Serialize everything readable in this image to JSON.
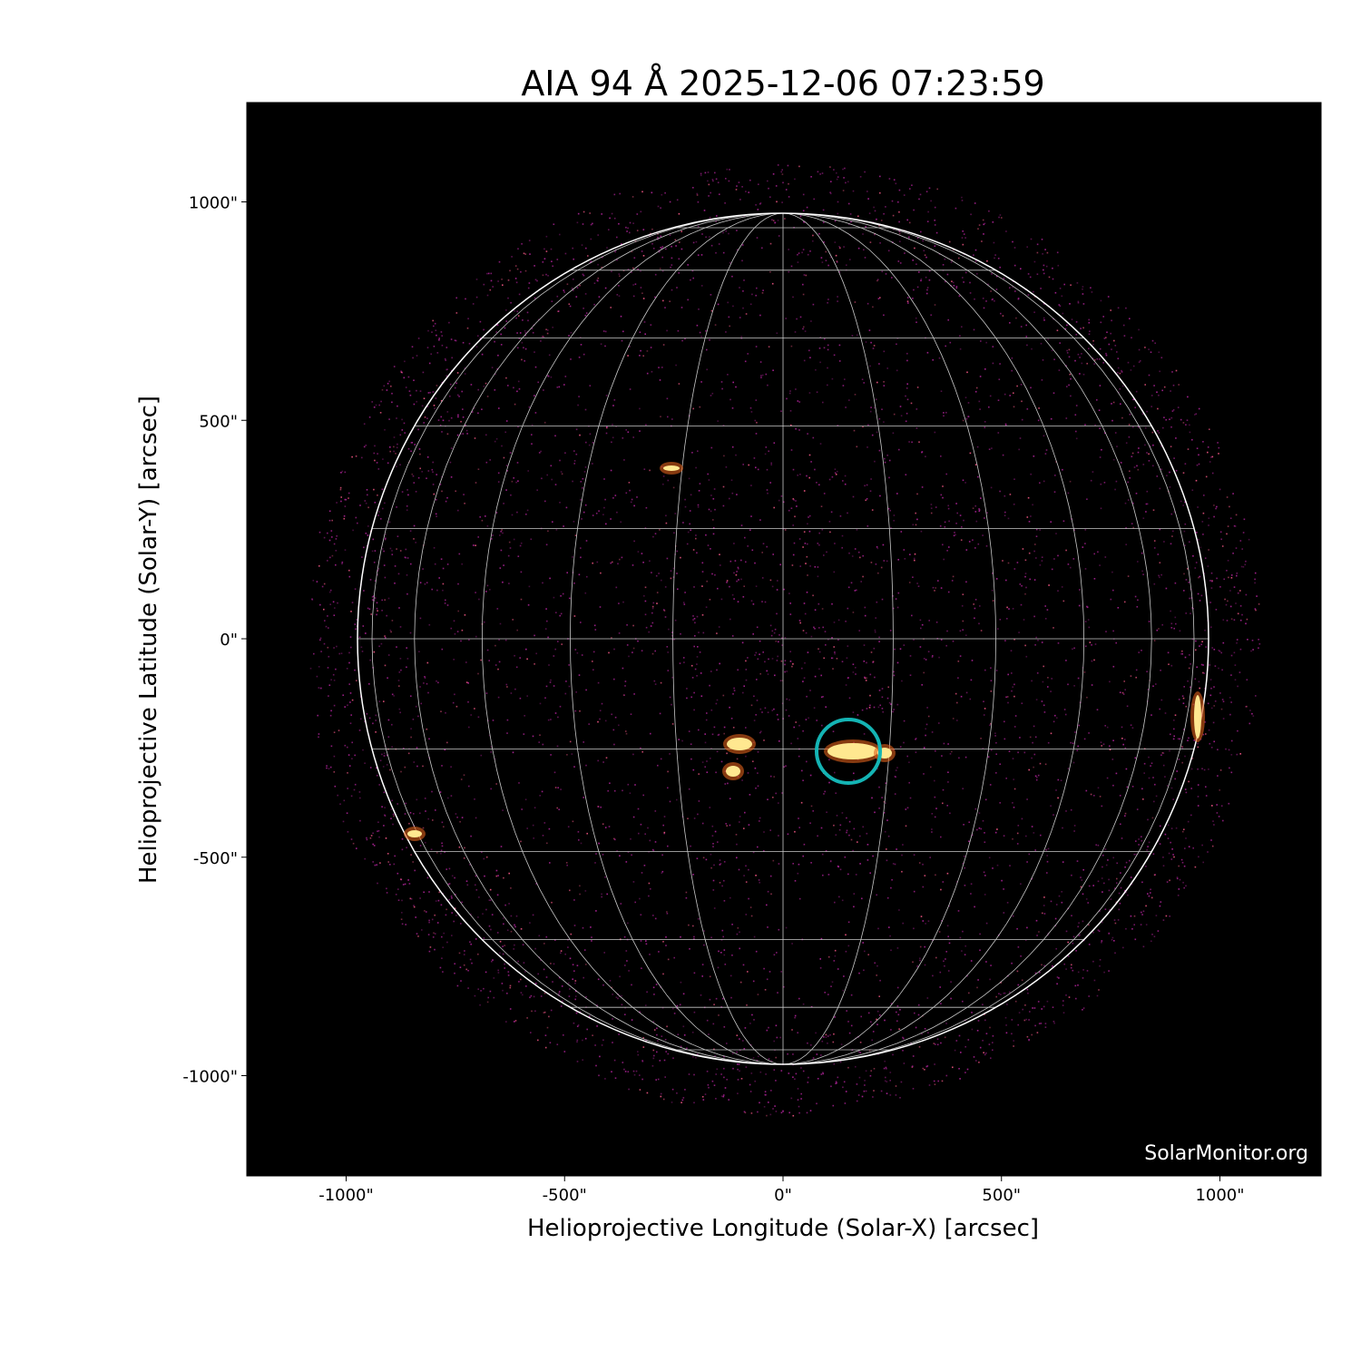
{
  "title": "AIA 94 Å 2025-12-06 07:23:59",
  "watermark": "SolarMonitor.org",
  "x_axis": {
    "label": "Helioprojective Longitude (Solar-X) [arcsec]",
    "ticks": [
      "-1000\"",
      "-500\"",
      "0\"",
      "500\"",
      "1000\""
    ],
    "tick_values": [
      -1000,
      -500,
      0,
      500,
      1000
    ]
  },
  "y_axis": {
    "label": "Helioprojective Latitude (Solar-Y) [arcsec]",
    "ticks": [
      "1000\"",
      "500\"",
      "0\"",
      "-500\"",
      "-1000\""
    ],
    "tick_values": [
      1000,
      500,
      0,
      -500,
      -1000
    ]
  },
  "grid_spacing_deg": 15,
  "highlight": {
    "x_arcsec": 150,
    "y_arcsec": -258,
    "color": "#14b4b4"
  },
  "colors": {
    "background": "#000000",
    "limb": "#ffffff",
    "grid": "#c8c8c8",
    "emission": "#a0208c",
    "bright": "#ffe890"
  }
}
